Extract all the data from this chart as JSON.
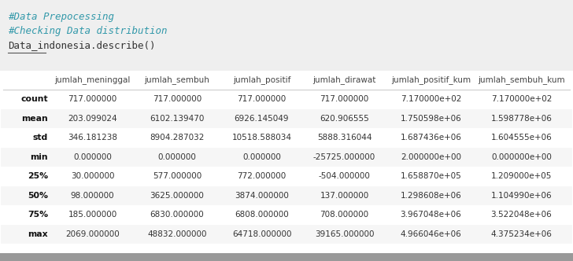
{
  "columns": [
    "jumlah_meninggal",
    "jumlah_sembuh",
    "jumlah_positif",
    "jumlah_dirawat",
    "jumlah_positif_kum",
    "jumlah_sembuh_kum"
  ],
  "rows": [
    "count",
    "mean",
    "std",
    "min",
    "25%",
    "50%",
    "75%",
    "max"
  ],
  "data": [
    [
      "717.000000",
      "717.000000",
      "717.000000",
      "717.000000",
      "7.170000e+02",
      "7.170000e+02"
    ],
    [
      "203.099024",
      "6102.139470",
      "6926.145049",
      "620.906555",
      "1.750598e+06",
      "1.598778e+06"
    ],
    [
      "346.181238",
      "8904.287032",
      "10518.588034",
      "5888.316044",
      "1.687436e+06",
      "1.604555e+06"
    ],
    [
      "0.000000",
      "0.000000",
      "0.000000",
      "-25725.000000",
      "2.000000e+00",
      "0.000000e+00"
    ],
    [
      "30.000000",
      "577.000000",
      "772.000000",
      "-504.000000",
      "1.658870e+05",
      "1.209000e+05"
    ],
    [
      "98.000000",
      "3625.000000",
      "3874.000000",
      "137.000000",
      "1.298608e+06",
      "1.104990e+06"
    ],
    [
      "185.000000",
      "6830.000000",
      "6808.000000",
      "708.000000",
      "3.967048e+06",
      "3.522048e+06"
    ],
    [
      "2069.000000",
      "48832.000000",
      "64718.000000",
      "39165.000000",
      "4.966046e+06",
      "4.375234e+06"
    ]
  ],
  "comment_line1": "#Data Prepocessing",
  "comment_line2": "#Checking Data distribution",
  "code_line": "Data_indonesia.describe()",
  "bg_color": "#efefef",
  "table_bg": "#ffffff",
  "comment_color": "#3399aa",
  "code_color": "#333333",
  "header_color": "#444444",
  "data_color": "#333333",
  "bold_label_color": "#111111",
  "bottom_bar_color": "#999999",
  "font_size_comment": 9.0,
  "font_size_table": 7.5
}
